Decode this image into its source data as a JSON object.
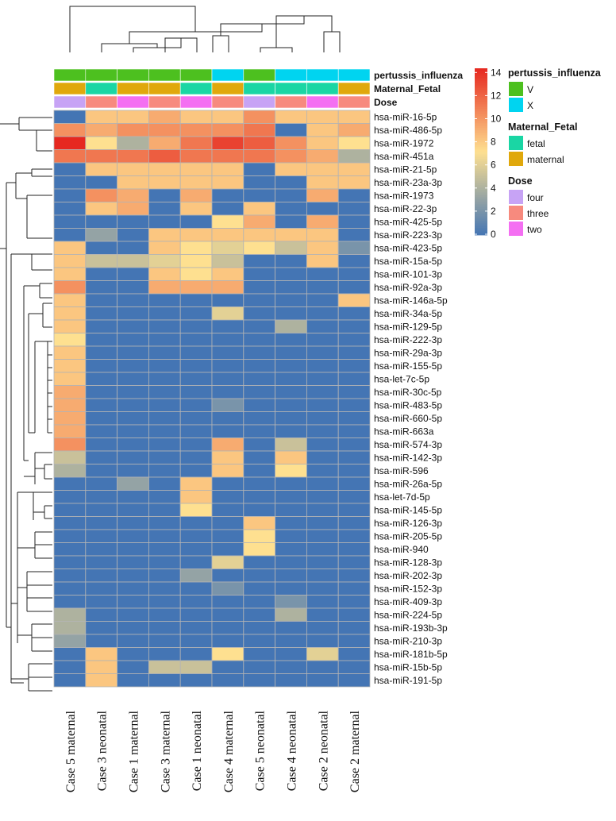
{
  "chart_data": {
    "type": "heatmap",
    "title": "",
    "columns": [
      "Case 5 maternal",
      "Case 3 neonatal",
      "Case 1 maternal",
      "Case 3 maternal",
      "Case 1 neonatal",
      "Case 4 maternal",
      "Case 5 neonatal",
      "Case 4 neonatal",
      "Case 2 neonatal",
      "Case 2 maternal"
    ],
    "rows": [
      "hsa-miR-16-5p",
      "hsa-miR-486-5p",
      "hsa-miR-1972",
      "hsa-miR-451a",
      "hsa-miR-21-5p",
      "hsa-miR-23a-3p",
      "hsa-miR-1973",
      "hsa-miR-22-3p",
      "hsa-miR-425-5p",
      "hsa-miR-223-3p",
      "hsa-miR-423-5p",
      "hsa-miR-15a-5p",
      "hsa-miR-101-3p",
      "hsa-miR-92a-3p",
      "hsa-miR-146a-5p",
      "hsa-miR-34a-5p",
      "hsa-miR-129-5p",
      "hsa-miR-222-3p",
      "hsa-miR-29a-3p",
      "hsa-miR-155-5p",
      "hsa-let-7c-5p",
      "hsa-miR-30c-5p",
      "hsa-miR-483-5p",
      "hsa-miR-660-5p",
      "hsa-miR-663a",
      "hsa-miR-574-3p",
      "hsa-miR-142-3p",
      "hsa-miR-596",
      "hsa-miR-26a-5p",
      "hsa-let-7d-5p",
      "hsa-miR-145-5p",
      "hsa-miR-126-3p",
      "hsa-miR-205-5p",
      "hsa-miR-940",
      "hsa-miR-128-3p",
      "hsa-miR-202-3p",
      "hsa-miR-152-3p",
      "hsa-miR-409-3p",
      "hsa-miR-224-5p",
      "hsa-miR-193b-3p",
      "hsa-miR-210-3p",
      "hsa-miR-181b-5p",
      "hsa-miR-15b-5p",
      "hsa-miR-191-5p"
    ],
    "values": [
      [
        0,
        8,
        8,
        9,
        8,
        8,
        10,
        8,
        8,
        8
      ],
      [
        10,
        9,
        10,
        10,
        10,
        10,
        11,
        0,
        8,
        9
      ],
      [
        14,
        7,
        4,
        9,
        11,
        13,
        12,
        10,
        8,
        7
      ],
      [
        11,
        11,
        11,
        12,
        11,
        11,
        11,
        10,
        9,
        4
      ],
      [
        0,
        8,
        8,
        8,
        8,
        8,
        0,
        8,
        8,
        8
      ],
      [
        0,
        0,
        8,
        8,
        8,
        8,
        0,
        0,
        8,
        8
      ],
      [
        0,
        10,
        9,
        0,
        9,
        0,
        0,
        0,
        9,
        0
      ],
      [
        0,
        8,
        9,
        0,
        8,
        0,
        8,
        0,
        0,
        0
      ],
      [
        0,
        0,
        0,
        0,
        0,
        7,
        9,
        0,
        9,
        0
      ],
      [
        0,
        3,
        0,
        8,
        8,
        8,
        8,
        8,
        8,
        0
      ],
      [
        8,
        0,
        0,
        8,
        7,
        6,
        7,
        5,
        8,
        2
      ],
      [
        8,
        5,
        5,
        6,
        7,
        5,
        0,
        0,
        8,
        0
      ],
      [
        8,
        0,
        0,
        8,
        7,
        8,
        0,
        0,
        0,
        0
      ],
      [
        10,
        0,
        0,
        9,
        9,
        9,
        0,
        0,
        0,
        0
      ],
      [
        8,
        0,
        0,
        0,
        0,
        0,
        0,
        0,
        0,
        8
      ],
      [
        8,
        0,
        0,
        0,
        0,
        6,
        0,
        0,
        0,
        0
      ],
      [
        8,
        0,
        0,
        0,
        0,
        0,
        0,
        4,
        0,
        0
      ],
      [
        7,
        0,
        0,
        0,
        0,
        0,
        0,
        0,
        0,
        0
      ],
      [
        8,
        0,
        0,
        0,
        0,
        0,
        0,
        0,
        0,
        0
      ],
      [
        8,
        0,
        0,
        0,
        0,
        0,
        0,
        0,
        0,
        0
      ],
      [
        8,
        0,
        0,
        0,
        0,
        0,
        0,
        0,
        0,
        0
      ],
      [
        9,
        0,
        0,
        0,
        0,
        0,
        0,
        0,
        0,
        0
      ],
      [
        9,
        0,
        0,
        0,
        0,
        2,
        0,
        0,
        0,
        0
      ],
      [
        9,
        0,
        0,
        0,
        0,
        0,
        0,
        0,
        0,
        0
      ],
      [
        9,
        0,
        0,
        0,
        0,
        0,
        0,
        0,
        0,
        0
      ],
      [
        10,
        0,
        0,
        0,
        0,
        9,
        0,
        5,
        0,
        0
      ],
      [
        5,
        0,
        0,
        0,
        0,
        8,
        0,
        8,
        0,
        0
      ],
      [
        4,
        0,
        0,
        0,
        0,
        8,
        0,
        7,
        0,
        0
      ],
      [
        0,
        0,
        3,
        0,
        8,
        0,
        0,
        0,
        0,
        0
      ],
      [
        0,
        0,
        0,
        0,
        8,
        0,
        0,
        0,
        0,
        0
      ],
      [
        0,
        0,
        0,
        0,
        7,
        0,
        0,
        0,
        0,
        0
      ],
      [
        0,
        0,
        0,
        0,
        0,
        0,
        8,
        0,
        0,
        0
      ],
      [
        0,
        0,
        0,
        0,
        0,
        0,
        7,
        0,
        0,
        0
      ],
      [
        0,
        0,
        0,
        0,
        0,
        0,
        7,
        0,
        0,
        0
      ],
      [
        0,
        0,
        0,
        0,
        0,
        6,
        0,
        0,
        0,
        0
      ],
      [
        0,
        0,
        0,
        0,
        3,
        0,
        0,
        0,
        0,
        0
      ],
      [
        0,
        0,
        0,
        0,
        0,
        2,
        0,
        0,
        0,
        0
      ],
      [
        0,
        0,
        0,
        0,
        0,
        0,
        0,
        2,
        0,
        0
      ],
      [
        4,
        0,
        0,
        0,
        0,
        0,
        0,
        4,
        0,
        0
      ],
      [
        4,
        0,
        0,
        0,
        0,
        0,
        0,
        0,
        0,
        0
      ],
      [
        3,
        0,
        0,
        0,
        0,
        0,
        0,
        0,
        0,
        0
      ],
      [
        0,
        8,
        0,
        0,
        0,
        7,
        0,
        0,
        6,
        0
      ],
      [
        0,
        8,
        0,
        5,
        5,
        0,
        0,
        0,
        0,
        0
      ],
      [
        0,
        8,
        0,
        0,
        0,
        0,
        0,
        0,
        0,
        0
      ]
    ],
    "color_range": [
      0,
      14
    ],
    "color_ticks": [
      0,
      2,
      4,
      6,
      8,
      10,
      12,
      14
    ],
    "color_stops": [
      "#4475b4",
      "#fee090",
      "#e62820"
    ],
    "annotations": [
      {
        "name": "pertussis_influenza",
        "values": [
          "V",
          "V",
          "V",
          "V",
          "V",
          "X",
          "V",
          "X",
          "X",
          "X"
        ]
      },
      {
        "name": "Maternal_Fetal",
        "values": [
          "maternal",
          "fetal",
          "maternal",
          "maternal",
          "fetal",
          "maternal",
          "fetal",
          "fetal",
          "fetal",
          "maternal"
        ]
      },
      {
        "name": "Dose",
        "values": [
          "four",
          "three",
          "two",
          "three",
          "two",
          "three",
          "four",
          "three",
          "two",
          "three"
        ]
      }
    ],
    "legend": [
      {
        "title": "pertussis_influenza",
        "items": [
          {
            "label": "V",
            "color": "#4dc01f"
          },
          {
            "label": "X",
            "color": "#00d4f0"
          }
        ]
      },
      {
        "title": "Maternal_Fetal",
        "items": [
          {
            "label": "fetal",
            "color": "#1ad6a4"
          },
          {
            "label": "maternal",
            "color": "#e0a80c"
          }
        ]
      },
      {
        "title": "Dose",
        "items": [
          {
            "label": "four",
            "color": "#c7a3f5"
          },
          {
            "label": "three",
            "color": "#f78a7e"
          },
          {
            "label": "two",
            "color": "#f46ff2"
          }
        ]
      }
    ]
  }
}
